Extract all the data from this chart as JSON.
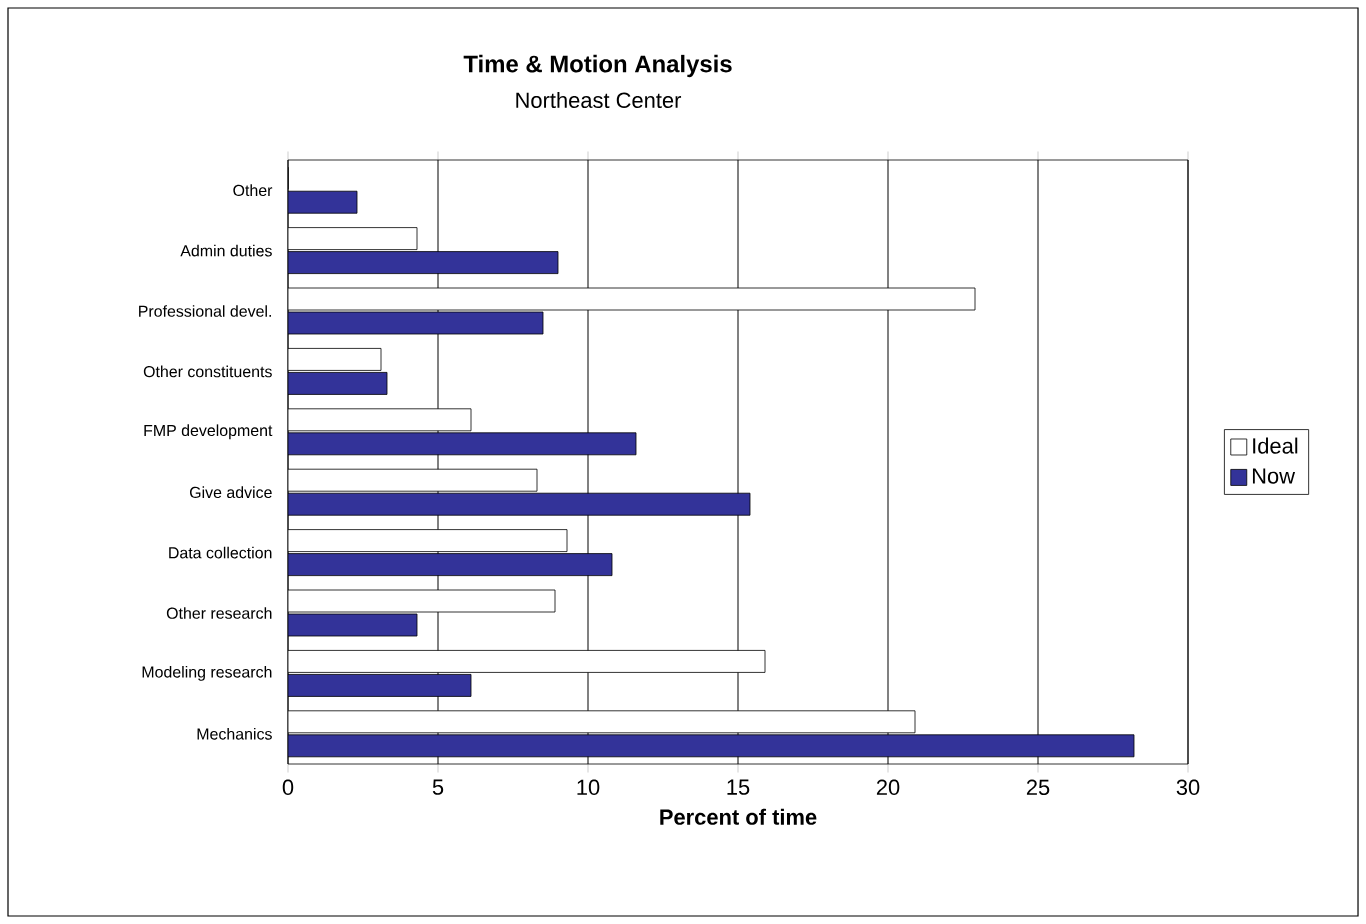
{
  "chart_data": {
    "type": "bar",
    "orientation": "horizontal",
    "title": "Time & Motion Analysis",
    "subtitle": "Northeast Center",
    "xlabel": "Percent of time",
    "categories": [
      "Other",
      "Admin duties",
      "Professional devel.",
      "Other constituents",
      "FMP development",
      "Give advice",
      "Data collection",
      "Other research",
      "Modeling research",
      "Mechanics"
    ],
    "series": [
      {
        "name": "Ideal",
        "color": "#ffffff",
        "values": [
          0,
          4.3,
          22.9,
          3.1,
          6.1,
          8.3,
          9.3,
          8.9,
          15.9,
          20.9
        ]
      },
      {
        "name": "Now",
        "color": "#333399",
        "values": [
          2.3,
          9.0,
          8.5,
          3.3,
          11.6,
          15.4,
          10.8,
          4.3,
          6.1,
          28.2
        ]
      }
    ],
    "xlim": [
      0,
      30
    ],
    "xticks": [
      0,
      5,
      10,
      15,
      20,
      25,
      30
    ],
    "grid": "x",
    "legend": "right"
  }
}
